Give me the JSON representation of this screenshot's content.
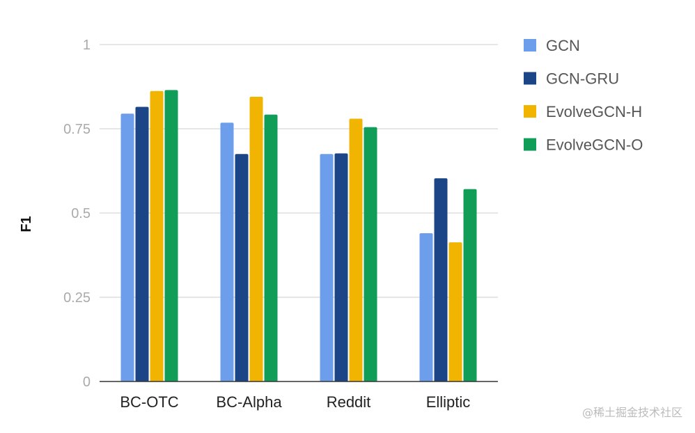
{
  "chart_data": {
    "type": "bar",
    "title": "",
    "xlabel": "",
    "ylabel": "F1",
    "ylim": [
      0,
      1
    ],
    "yticks": [
      0,
      0.25,
      0.5,
      0.75,
      1
    ],
    "ytick_labels": [
      "0",
      "0.25",
      "0.5",
      "0.75",
      "1"
    ],
    "grid": true,
    "legend_position": "right",
    "categories": [
      "BC-OTC",
      "BC-Alpha",
      "Reddit",
      "Elliptic"
    ],
    "series": [
      {
        "name": "GCN",
        "color": "#6d9eeb",
        "values": [
          0.795,
          0.768,
          0.675,
          0.44
        ]
      },
      {
        "name": "GCN-GRU",
        "color": "#1c4587",
        "values": [
          0.815,
          0.675,
          0.677,
          0.603
        ]
      },
      {
        "name": "EvolveGCN-H",
        "color": "#f1b400",
        "values": [
          0.862,
          0.845,
          0.78,
          0.413
        ]
      },
      {
        "name": "EvolveGCN-O",
        "color": "#0f9d58",
        "values": [
          0.865,
          0.792,
          0.755,
          0.571
        ]
      }
    ]
  },
  "watermark": "@稀土掘金技术社区"
}
